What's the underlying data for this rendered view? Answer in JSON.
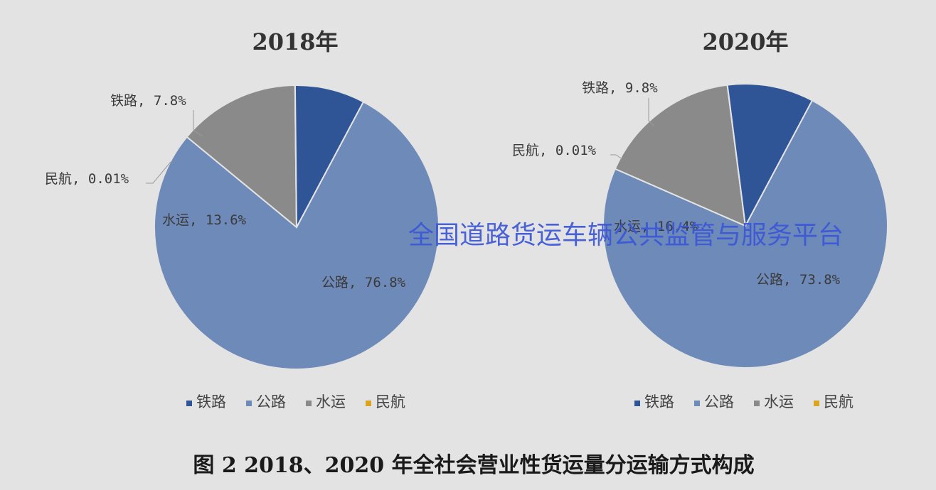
{
  "colors": {
    "tielu": "#2f5597",
    "gonglu": "#6e8ab8",
    "shuiyun": "#8a8a8a",
    "minhang": "#d9a520",
    "watermark": "#3b57d8"
  },
  "chart_data": [
    {
      "type": "pie",
      "title": "2018年",
      "slices": [
        {
          "name": "公路",
          "value": 76.8,
          "label": "公路, 76.8%"
        },
        {
          "name": "水运",
          "value": 13.6,
          "label": "水运, 13.6%"
        },
        {
          "name": "民航",
          "value": 0.01,
          "label": "民航, 0.01%"
        },
        {
          "name": "铁路",
          "value": 7.8,
          "label": "铁路, 7.8%"
        }
      ],
      "legend": [
        "铁路",
        "公路",
        "水运",
        "民航"
      ],
      "legend_position": "bottom"
    },
    {
      "type": "pie",
      "title": "2020年",
      "slices": [
        {
          "name": "公路",
          "value": 73.8,
          "label": "公路, 73.8%"
        },
        {
          "name": "水运",
          "value": 16.4,
          "label": "水运, 16.4%"
        },
        {
          "name": "民航",
          "value": 0.01,
          "label": "民航, 0.01%"
        },
        {
          "name": "铁路",
          "value": 9.8,
          "label": "铁路, 9.8%"
        }
      ],
      "legend": [
        "铁路",
        "公路",
        "水运",
        "民航"
      ],
      "legend_position": "bottom"
    }
  ],
  "watermark": "全国道路货运车辆公共监管与服务平台",
  "caption": "图 2 2018、2020 年全社会营业性货运量分运输方式构成"
}
